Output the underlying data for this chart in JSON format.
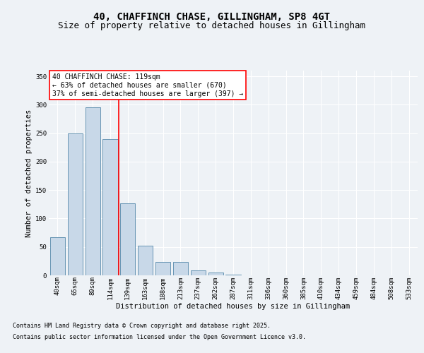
{
  "title_line1": "40, CHAFFINCH CHASE, GILLINGHAM, SP8 4GT",
  "title_line2": "Size of property relative to detached houses in Gillingham",
  "xlabel": "Distribution of detached houses by size in Gillingham",
  "ylabel": "Number of detached properties",
  "categories": [
    "40sqm",
    "65sqm",
    "89sqm",
    "114sqm",
    "139sqm",
    "163sqm",
    "188sqm",
    "213sqm",
    "237sqm",
    "262sqm",
    "287sqm",
    "311sqm",
    "336sqm",
    "360sqm",
    "385sqm",
    "410sqm",
    "434sqm",
    "459sqm",
    "484sqm",
    "508sqm",
    "533sqm"
  ],
  "values": [
    67,
    250,
    295,
    240,
    127,
    52,
    23,
    23,
    9,
    5,
    1,
    0,
    0,
    0,
    0,
    0,
    0,
    0,
    0,
    0,
    0
  ],
  "bar_color": "#c8d8e8",
  "bar_edge_color": "#5588aa",
  "red_line_x": 3.5,
  "annotation_text": "40 CHAFFINCH CHASE: 119sqm\n← 63% of detached houses are smaller (670)\n37% of semi-detached houses are larger (397) →",
  "annotation_box_color": "white",
  "annotation_box_edge": "red",
  "ylim": [
    0,
    360
  ],
  "yticks": [
    0,
    50,
    100,
    150,
    200,
    250,
    300,
    350
  ],
  "footer_line1": "Contains HM Land Registry data © Crown copyright and database right 2025.",
  "footer_line2": "Contains public sector information licensed under the Open Government Licence v3.0.",
  "bg_color": "#eef2f6",
  "plot_bg_color": "#eef2f6",
  "grid_color": "white",
  "title_fontsize": 10,
  "subtitle_fontsize": 9,
  "label_fontsize": 7.5,
  "tick_fontsize": 6.5,
  "footer_fontsize": 6.0,
  "annotation_fontsize": 7.0
}
